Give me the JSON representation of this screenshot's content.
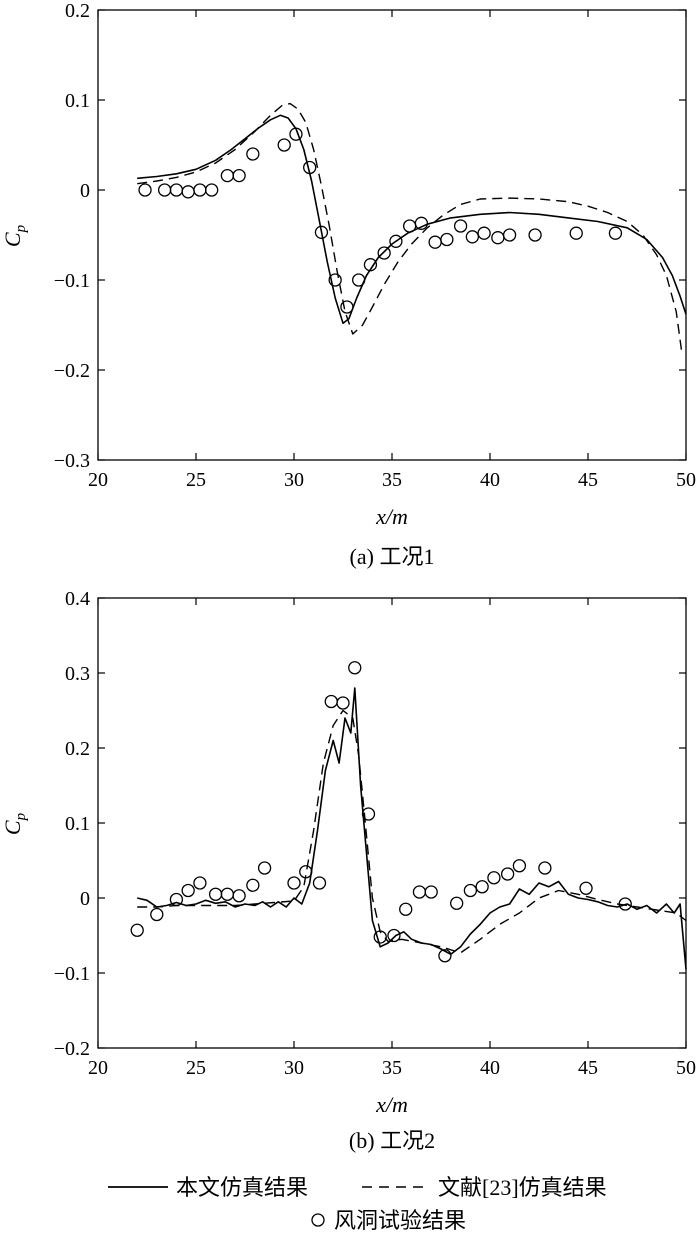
{
  "chart_data": [
    {
      "type": "line",
      "caption": "(a) 工况1",
      "xlabel": "x/m",
      "ylabel": "Cp",
      "xlim": [
        20,
        50
      ],
      "ylim": [
        -0.3,
        0.2
      ],
      "xticks": [
        20,
        25,
        30,
        35,
        40,
        45,
        50
      ],
      "yticks": [
        -0.3,
        -0.2,
        -0.1,
        0,
        0.1,
        0.2
      ],
      "xtick_labels": [
        "20",
        "25",
        "30",
        "35",
        "40",
        "45",
        "50"
      ],
      "ytick_labels": [
        "−0.3",
        "−0.2",
        "−0.1",
        "0",
        "0.1",
        "0.2"
      ],
      "grid": false,
      "series": [
        {
          "name": "本文仿真结果",
          "style": "solid",
          "x": [
            22,
            23,
            24,
            25,
            26,
            26.8,
            27.5,
            28.2,
            28.8,
            29.3,
            29.7,
            30.1,
            30.5,
            30.9,
            31.3,
            31.7,
            32.1,
            32.5,
            32.8,
            33.2,
            33.7,
            34.3,
            35,
            35.8,
            36.8,
            38,
            39.5,
            41,
            42.5,
            44,
            45.5,
            47,
            48,
            48.8,
            49.3,
            49.7,
            50
          ],
          "y": [
            0.013,
            0.015,
            0.018,
            0.023,
            0.033,
            0.045,
            0.057,
            0.069,
            0.078,
            0.083,
            0.08,
            0.068,
            0.045,
            0.01,
            -0.035,
            -0.08,
            -0.12,
            -0.148,
            -0.143,
            -0.12,
            -0.095,
            -0.075,
            -0.06,
            -0.048,
            -0.038,
            -0.031,
            -0.027,
            -0.025,
            -0.027,
            -0.031,
            -0.035,
            -0.042,
            -0.055,
            -0.075,
            -0.095,
            -0.118,
            -0.138
          ]
        },
        {
          "name": "文献[23]仿真结果",
          "style": "dashed",
          "x": [
            22,
            23,
            24,
            25,
            26,
            27,
            28,
            28.8,
            29.4,
            29.8,
            30.2,
            30.6,
            31,
            31.4,
            31.8,
            32.2,
            32.6,
            33,
            33.5,
            34,
            34.6,
            35.3,
            36,
            36.8,
            37.6,
            38.5,
            39.5,
            41,
            42.5,
            44,
            45,
            46,
            47,
            47.8,
            48.5,
            49,
            49.5,
            49.8
          ],
          "y": [
            0.007,
            0.01,
            0.014,
            0.02,
            0.03,
            0.045,
            0.065,
            0.083,
            0.094,
            0.096,
            0.09,
            0.075,
            0.045,
            0.005,
            -0.04,
            -0.09,
            -0.135,
            -0.16,
            -0.15,
            -0.13,
            -0.105,
            -0.08,
            -0.06,
            -0.042,
            -0.028,
            -0.016,
            -0.01,
            -0.009,
            -0.01,
            -0.013,
            -0.018,
            -0.025,
            -0.035,
            -0.05,
            -0.072,
            -0.095,
            -0.135,
            -0.183
          ]
        },
        {
          "name": "风洞试验结果",
          "style": "markers",
          "x": [
            22.4,
            23.4,
            24,
            24.6,
            25.2,
            25.8,
            26.6,
            27.2,
            27.9,
            29.5,
            30.1,
            30.8,
            31.4,
            32.1,
            32.7,
            33.3,
            33.9,
            34.6,
            35.2,
            35.9,
            36.5,
            37.2,
            37.8,
            38.5,
            39.1,
            39.7,
            40.4,
            41,
            42.3,
            44.4,
            46.4
          ],
          "y": [
            0,
            0,
            0,
            -0.002,
            0,
            0,
            0.016,
            0.016,
            0.04,
            0.05,
            0.062,
            0.025,
            -0.047,
            -0.1,
            -0.13,
            -0.1,
            -0.083,
            -0.07,
            -0.057,
            -0.04,
            -0.037,
            -0.058,
            -0.055,
            -0.04,
            -0.052,
            -0.048,
            -0.053,
            -0.05,
            -0.05,
            -0.048,
            -0.048
          ]
        }
      ]
    },
    {
      "type": "line",
      "caption": "(b) 工况2",
      "xlabel": "x/m",
      "ylabel": "Cp",
      "xlim": [
        20,
        50
      ],
      "ylim": [
        -0.2,
        0.4
      ],
      "xticks": [
        20,
        25,
        30,
        35,
        40,
        45,
        50
      ],
      "yticks": [
        -0.2,
        -0.1,
        0,
        0.1,
        0.2,
        0.3,
        0.4
      ],
      "xtick_labels": [
        "20",
        "25",
        "30",
        "35",
        "40",
        "45",
        "50"
      ],
      "ytick_labels": [
        "−0.2",
        "−0.1",
        "0",
        "0.1",
        "0.2",
        "0.3",
        "0.4"
      ],
      "grid": false,
      "series": [
        {
          "name": "本文仿真结果",
          "style": "solid",
          "x": [
            22,
            22.5,
            23,
            23.5,
            24,
            24.5,
            25,
            25.5,
            26,
            26.5,
            27,
            27.5,
            28,
            28.4,
            28.8,
            29.2,
            29.6,
            30,
            30.4,
            30.8,
            31.2,
            31.6,
            32,
            32.3,
            32.6,
            32.9,
            33.1,
            33.4,
            33.7,
            34,
            34.4,
            34.8,
            35.2,
            35.6,
            36,
            36.5,
            37,
            37.5,
            38,
            38.5,
            39,
            39.5,
            40,
            40.5,
            41,
            41.5,
            42,
            42.5,
            43,
            43.5,
            44,
            44.5,
            45,
            45.5,
            46,
            46.5,
            47,
            47.5,
            48,
            48.5,
            49,
            49.4,
            49.7,
            50
          ],
          "y": [
            0,
            -0.003,
            -0.012,
            -0.01,
            -0.006,
            -0.01,
            -0.008,
            -0.003,
            -0.007,
            -0.005,
            -0.012,
            -0.008,
            -0.01,
            -0.005,
            -0.012,
            -0.005,
            -0.012,
            0,
            -0.008,
            0.02,
            0.09,
            0.17,
            0.21,
            0.18,
            0.24,
            0.22,
            0.28,
            0.15,
            0.06,
            -0.03,
            -0.065,
            -0.06,
            -0.05,
            -0.045,
            -0.055,
            -0.06,
            -0.062,
            -0.068,
            -0.075,
            -0.065,
            -0.048,
            -0.035,
            -0.02,
            -0.012,
            -0.008,
            0.012,
            0.005,
            0.02,
            0.015,
            0.022,
            0.005,
            0,
            -0.002,
            -0.005,
            -0.01,
            -0.012,
            -0.008,
            -0.015,
            -0.01,
            -0.02,
            -0.008,
            -0.02,
            -0.008,
            -0.095
          ]
        },
        {
          "name": "文献[23]仿真结果",
          "style": "dashed",
          "x": [
            22,
            23,
            24,
            25,
            26,
            27,
            28,
            29,
            30,
            30.5,
            31,
            31.5,
            32,
            32.5,
            33,
            33.3,
            33.6,
            34,
            34.4,
            34.8,
            35.5,
            36.5,
            37.5,
            38.5,
            39.5,
            40.5,
            41.5,
            42.5,
            43,
            43.5,
            44.5,
            45.5,
            46.5,
            47.5,
            48.5,
            49.5,
            50
          ],
          "y": [
            -0.012,
            -0.012,
            -0.01,
            -0.01,
            -0.01,
            -0.01,
            -0.008,
            -0.006,
            -0.004,
            0.015,
            0.09,
            0.18,
            0.23,
            0.25,
            0.24,
            0.19,
            0.11,
            0.0,
            -0.045,
            -0.058,
            -0.055,
            -0.06,
            -0.065,
            -0.073,
            -0.055,
            -0.035,
            -0.02,
            0,
            0.005,
            0.01,
            0.005,
            -0.002,
            -0.008,
            -0.012,
            -0.016,
            -0.02,
            -0.03
          ]
        },
        {
          "name": "风洞试验结果",
          "style": "markers",
          "x": [
            22,
            23,
            24,
            24.6,
            25.2,
            26,
            26.6,
            27.2,
            27.9,
            28.5,
            30,
            30.6,
            31.3,
            31.9,
            32.5,
            33.1,
            33.8,
            34.4,
            35.1,
            35.7,
            36.4,
            37,
            37.7,
            38.3,
            39,
            39.6,
            40.2,
            40.9,
            41.5,
            42.8,
            44.9,
            46.9
          ],
          "y": [
            -0.043,
            -0.022,
            -0.002,
            0.01,
            0.02,
            0.005,
            0.005,
            0.003,
            0.017,
            0.04,
            0.02,
            0.035,
            0.02,
            0.262,
            0.26,
            0.307,
            0.112,
            -0.052,
            -0.05,
            -0.015,
            0.008,
            0.008,
            -0.077,
            -0.007,
            0.01,
            0.015,
            0.027,
            0.032,
            0.043,
            0.04,
            0.013,
            -0.008
          ]
        }
      ]
    }
  ],
  "legend": {
    "items": [
      {
        "label": "本文仿真结果",
        "style": "solid"
      },
      {
        "label": "文献[23]仿真结果",
        "style": "dashed"
      },
      {
        "label": "风洞试验结果",
        "style": "markers"
      }
    ]
  }
}
